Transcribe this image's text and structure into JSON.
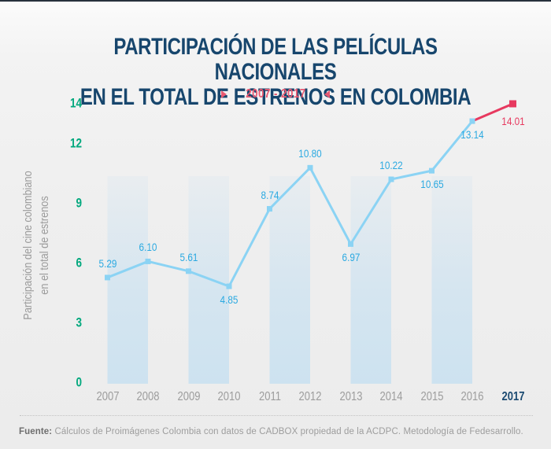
{
  "title": {
    "line1": "PARTICIPACIÓN DE LAS PELÍCULAS NACIONALES",
    "line2": "EN EL TOTAL DE ESTRENOS EN COLOMBIA"
  },
  "subtitle": {
    "label": "2007 - 2017"
  },
  "y_axis_title": {
    "line1": "Participación del cine colombiano",
    "line2": "en el total de estrenos"
  },
  "footer": {
    "label": "Fuente:",
    "text": " Cálculos de Proimágenes Colombia con datos de CADBOX propiedad de la ACDPC. Metodología de Fedesarrollo."
  },
  "colors": {
    "title_navy": "#17466D",
    "accent_red": "#E7395F",
    "subtitle_red": "#E85A72",
    "tick_green": "#00A87D",
    "label_blue": "#2BA9E1",
    "line_blue": "#8BD3F4",
    "stripe_blue": "#C6E0F1",
    "axis_gray": "#9B9B9B",
    "year_highlight": "#1B4A71"
  },
  "chart_data": {
    "type": "line",
    "title": "Participación de las películas nacionales en el total de estrenos en Colombia",
    "subtitle": "2007 - 2017",
    "x": [
      2007,
      2008,
      2009,
      2010,
      2011,
      2012,
      2013,
      2014,
      2015,
      2016,
      2017
    ],
    "values": [
      5.29,
      6.1,
      5.61,
      4.85,
      8.74,
      10.8,
      6.97,
      10.22,
      10.65,
      13.14,
      14.01
    ],
    "value_labels": [
      "5.29",
      "6.10",
      "5.61",
      "4.85",
      "8.74",
      "10.80",
      "6.97",
      "10.22",
      "10.65",
      "13.14",
      "14.01"
    ],
    "label_positions": [
      "above",
      "above",
      "above",
      "below",
      "above",
      "above",
      "below",
      "above",
      "below",
      "below",
      "below"
    ],
    "ylabel": "Participación del cine colombiano en el total de estrenos",
    "xlabel": "",
    "yticks": [
      0,
      3,
      6,
      9,
      12,
      14
    ],
    "ylim": [
      0,
      14.5
    ],
    "grid": false,
    "legend": false,
    "line_color": "#8BD3F4",
    "highlight_segment": {
      "from": 2016,
      "to": 2017,
      "color": "#E7395F"
    },
    "background_stripes": [
      [
        2007,
        2008
      ],
      [
        2009,
        2010
      ],
      [
        2011,
        2012
      ],
      [
        2013,
        2014
      ],
      [
        2015,
        2016
      ]
    ]
  }
}
